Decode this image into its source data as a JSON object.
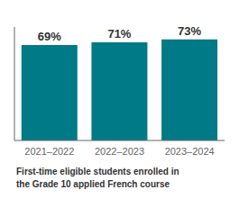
{
  "chart_data": {
    "type": "bar",
    "title": "First-time eligible students enrolled in\nthe Grade 10 applied French course",
    "categories": [
      "2021–2022",
      "2022–2023",
      "2023–2024"
    ],
    "values": [
      69,
      71,
      73
    ],
    "value_labels": [
      "69%",
      "71%",
      "73%"
    ],
    "data_labels": true,
    "color": "#007A87",
    "ylim": [
      0,
      82
    ],
    "grid": false,
    "tick_labels": "x"
  }
}
